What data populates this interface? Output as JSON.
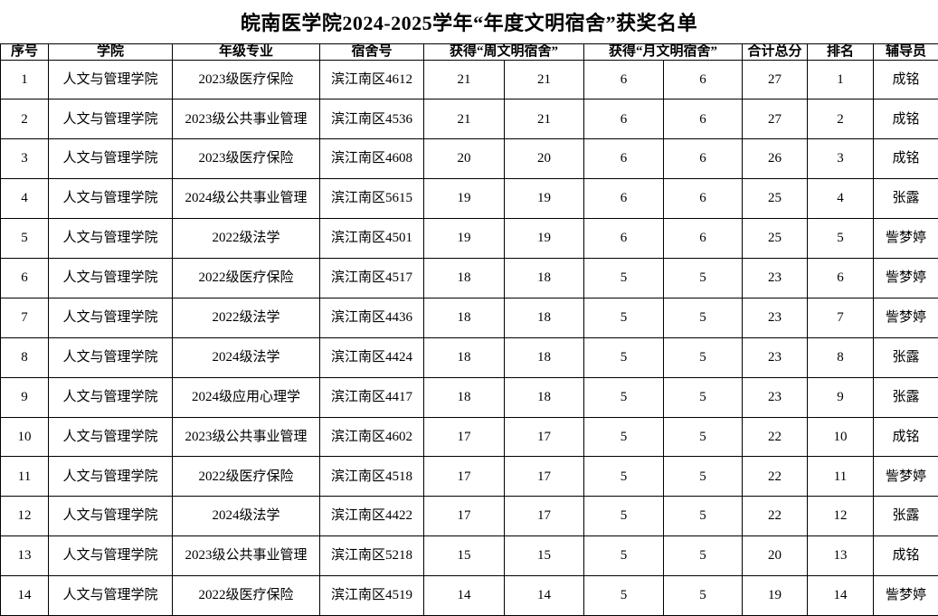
{
  "title": "皖南医学院2024-2025学年“年度文明宿舍”获奖名单",
  "colors": {
    "background": "#ffffff",
    "text": "#000000",
    "grid_border": "#000000"
  },
  "table": {
    "columns": [
      {
        "label": "序号",
        "colspan": 1
      },
      {
        "label": "学院",
        "colspan": 1
      },
      {
        "label": "年级专业",
        "colspan": 1
      },
      {
        "label": "宿舍号",
        "colspan": 1
      },
      {
        "label": "获得“周文明宿舍”",
        "colspan": 2
      },
      {
        "label": "获得“月文明宿舍”",
        "colspan": 2
      },
      {
        "label": "合计总分",
        "colspan": 1
      },
      {
        "label": "排名",
        "colspan": 1
      },
      {
        "label": "辅导员",
        "colspan": 1
      }
    ],
    "rows": [
      [
        "1",
        "人文与管理学院",
        "2023级医疗保险",
        "滨江南区4612",
        "21",
        "21",
        "6",
        "6",
        "27",
        "1",
        "成铭"
      ],
      [
        "2",
        "人文与管理学院",
        "2023级公共事业管理",
        "滨江南区4536",
        "21",
        "21",
        "6",
        "6",
        "27",
        "2",
        "成铭"
      ],
      [
        "3",
        "人文与管理学院",
        "2023级医疗保险",
        "滨江南区4608",
        "20",
        "20",
        "6",
        "6",
        "26",
        "3",
        "成铭"
      ],
      [
        "4",
        "人文与管理学院",
        "2024级公共事业管理",
        "滨江南区5615",
        "19",
        "19",
        "6",
        "6",
        "25",
        "4",
        "张露"
      ],
      [
        "5",
        "人文与管理学院",
        "2022级法学",
        "滨江南区4501",
        "19",
        "19",
        "6",
        "6",
        "25",
        "5",
        "訾梦婷"
      ],
      [
        "6",
        "人文与管理学院",
        "2022级医疗保险",
        "滨江南区4517",
        "18",
        "18",
        "5",
        "5",
        "23",
        "6",
        "訾梦婷"
      ],
      [
        "7",
        "人文与管理学院",
        "2022级法学",
        "滨江南区4436",
        "18",
        "18",
        "5",
        "5",
        "23",
        "7",
        "訾梦婷"
      ],
      [
        "8",
        "人文与管理学院",
        "2024级法学",
        "滨江南区4424",
        "18",
        "18",
        "5",
        "5",
        "23",
        "8",
        "张露"
      ],
      [
        "9",
        "人文与管理学院",
        "2024级应用心理学",
        "滨江南区4417",
        "18",
        "18",
        "5",
        "5",
        "23",
        "9",
        "张露"
      ],
      [
        "10",
        "人文与管理学院",
        "2023级公共事业管理",
        "滨江南区4602",
        "17",
        "17",
        "5",
        "5",
        "22",
        "10",
        "成铭"
      ],
      [
        "11",
        "人文与管理学院",
        "2022级医疗保险",
        "滨江南区4518",
        "17",
        "17",
        "5",
        "5",
        "22",
        "11",
        "訾梦婷"
      ],
      [
        "12",
        "人文与管理学院",
        "2024级法学",
        "滨江南区4422",
        "17",
        "17",
        "5",
        "5",
        "22",
        "12",
        "张露"
      ],
      [
        "13",
        "人文与管理学院",
        "2023级公共事业管理",
        "滨江南区5218",
        "15",
        "15",
        "5",
        "5",
        "20",
        "13",
        "成铭"
      ],
      [
        "14",
        "人文与管理学院",
        "2022级医疗保险",
        "滨江南区4519",
        "14",
        "14",
        "5",
        "5",
        "19",
        "14",
        "訾梦婷"
      ]
    ]
  }
}
